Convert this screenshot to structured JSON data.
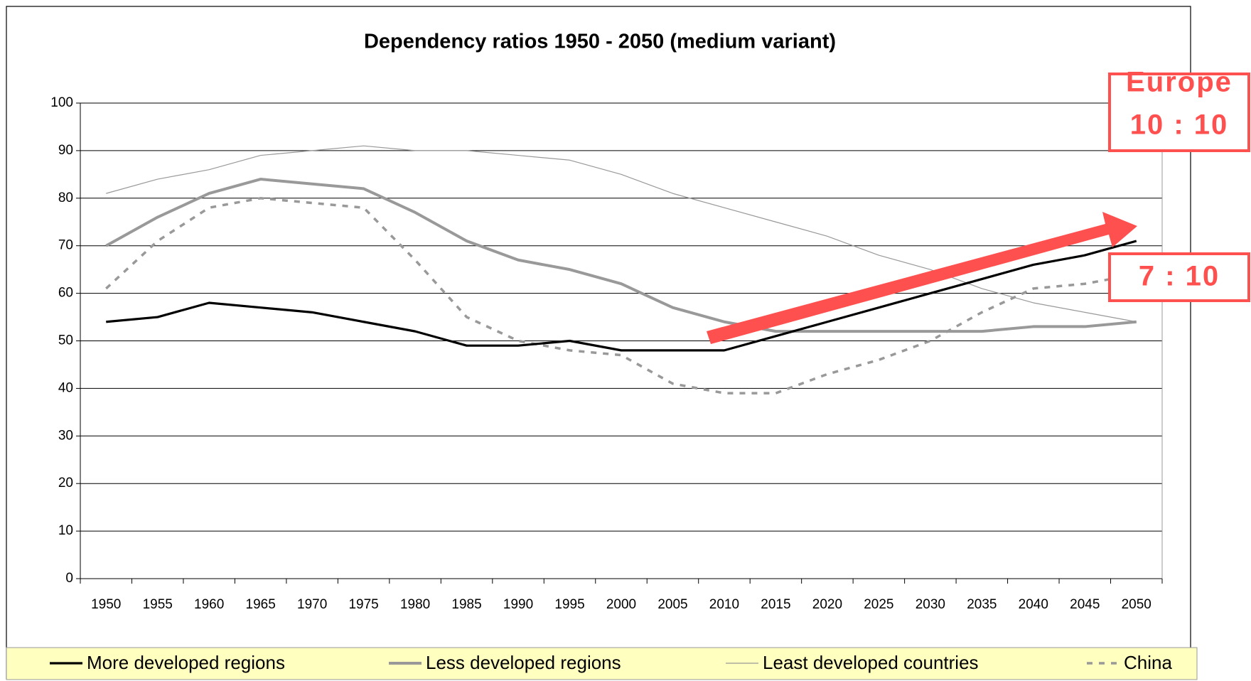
{
  "chart_data": {
    "type": "line",
    "title": "Dependency ratios 1950 - 2050 (medium variant)",
    "categories": [
      "1950",
      "1955",
      "1960",
      "1965",
      "1970",
      "1975",
      "1980",
      "1985",
      "1990",
      "1995",
      "2000",
      "2005",
      "2010",
      "2015",
      "2020",
      "2025",
      "2030",
      "2035",
      "2040",
      "2045",
      "2050"
    ],
    "series": [
      {
        "name": "More developed regions",
        "color": "#000000",
        "style": "thick",
        "values": [
          54,
          55,
          58,
          57,
          56,
          54,
          52,
          49,
          49,
          50,
          48,
          48,
          48,
          51,
          54,
          57,
          60,
          63,
          66,
          68,
          71
        ]
      },
      {
        "name": "Less developed regions",
        "color": "#999999",
        "style": "heavy",
        "values": [
          70,
          76,
          81,
          84,
          83,
          82,
          77,
          71,
          67,
          65,
          62,
          57,
          54,
          52,
          52,
          52,
          52,
          52,
          53,
          53,
          54
        ]
      },
      {
        "name": "Least developed countries",
        "color": "#999999",
        "style": "thin",
        "values": [
          81,
          84,
          86,
          89,
          90,
          91,
          90,
          90,
          89,
          88,
          85,
          81,
          78,
          75,
          72,
          68,
          65,
          61,
          58,
          56,
          54
        ]
      },
      {
        "name": "China",
        "color": "#999999",
        "style": "dashed",
        "values": [
          61,
          71,
          78,
          80,
          79,
          78,
          67,
          55,
          50,
          48,
          47,
          41,
          39,
          39,
          43,
          46,
          50,
          56,
          61,
          62,
          64
        ]
      }
    ],
    "ylim": [
      0,
      100
    ],
    "yticks": [
      0,
      10,
      20,
      30,
      40,
      50,
      60,
      70,
      80,
      90,
      100
    ],
    "grid": true,
    "annotations": [
      "Europe",
      "10 : 10",
      "7 : 10"
    ]
  }
}
